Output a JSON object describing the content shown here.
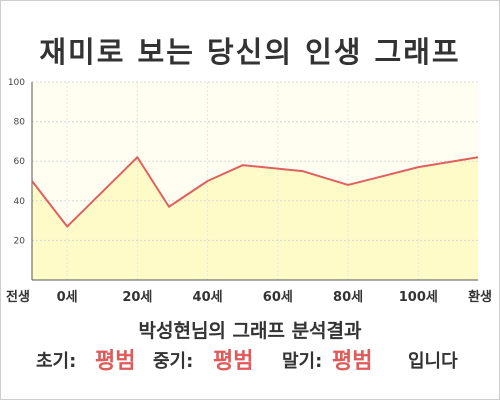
{
  "title": "재미로 보는 당신의 인생 그래프",
  "chart_data": {
    "type": "line",
    "x": [
      -10,
      0,
      20,
      29,
      40,
      50,
      67,
      80,
      100,
      117
    ],
    "y": [
      50,
      27,
      62,
      37,
      50,
      58,
      55,
      48,
      57,
      62
    ],
    "xticks": [
      {
        "pos": -10,
        "label": "전생"
      },
      {
        "pos": 0,
        "label": "0세"
      },
      {
        "pos": 20,
        "label": "20세"
      },
      {
        "pos": 40,
        "label": "40세"
      },
      {
        "pos": 60,
        "label": "60세"
      },
      {
        "pos": 80,
        "label": "80세"
      },
      {
        "pos": 100,
        "label": "100세"
      },
      {
        "pos": 117,
        "label": "환생"
      }
    ],
    "yticks": [
      "20",
      "40",
      "60",
      "80",
      "100"
    ],
    "ytick_values": [
      20,
      40,
      60,
      80,
      100
    ],
    "ylim": [
      0,
      100
    ],
    "grid": true,
    "fill_color": "#fffbc8",
    "line_color": "#e06060"
  },
  "result": {
    "title": "박성현님의 그래프 분석결과",
    "early_label": "초기:",
    "early_value": "평범",
    "middle_label": "중기:",
    "middle_value": "평범",
    "late_label": "말기:",
    "late_value": "평범",
    "suffix": "입니다"
  }
}
